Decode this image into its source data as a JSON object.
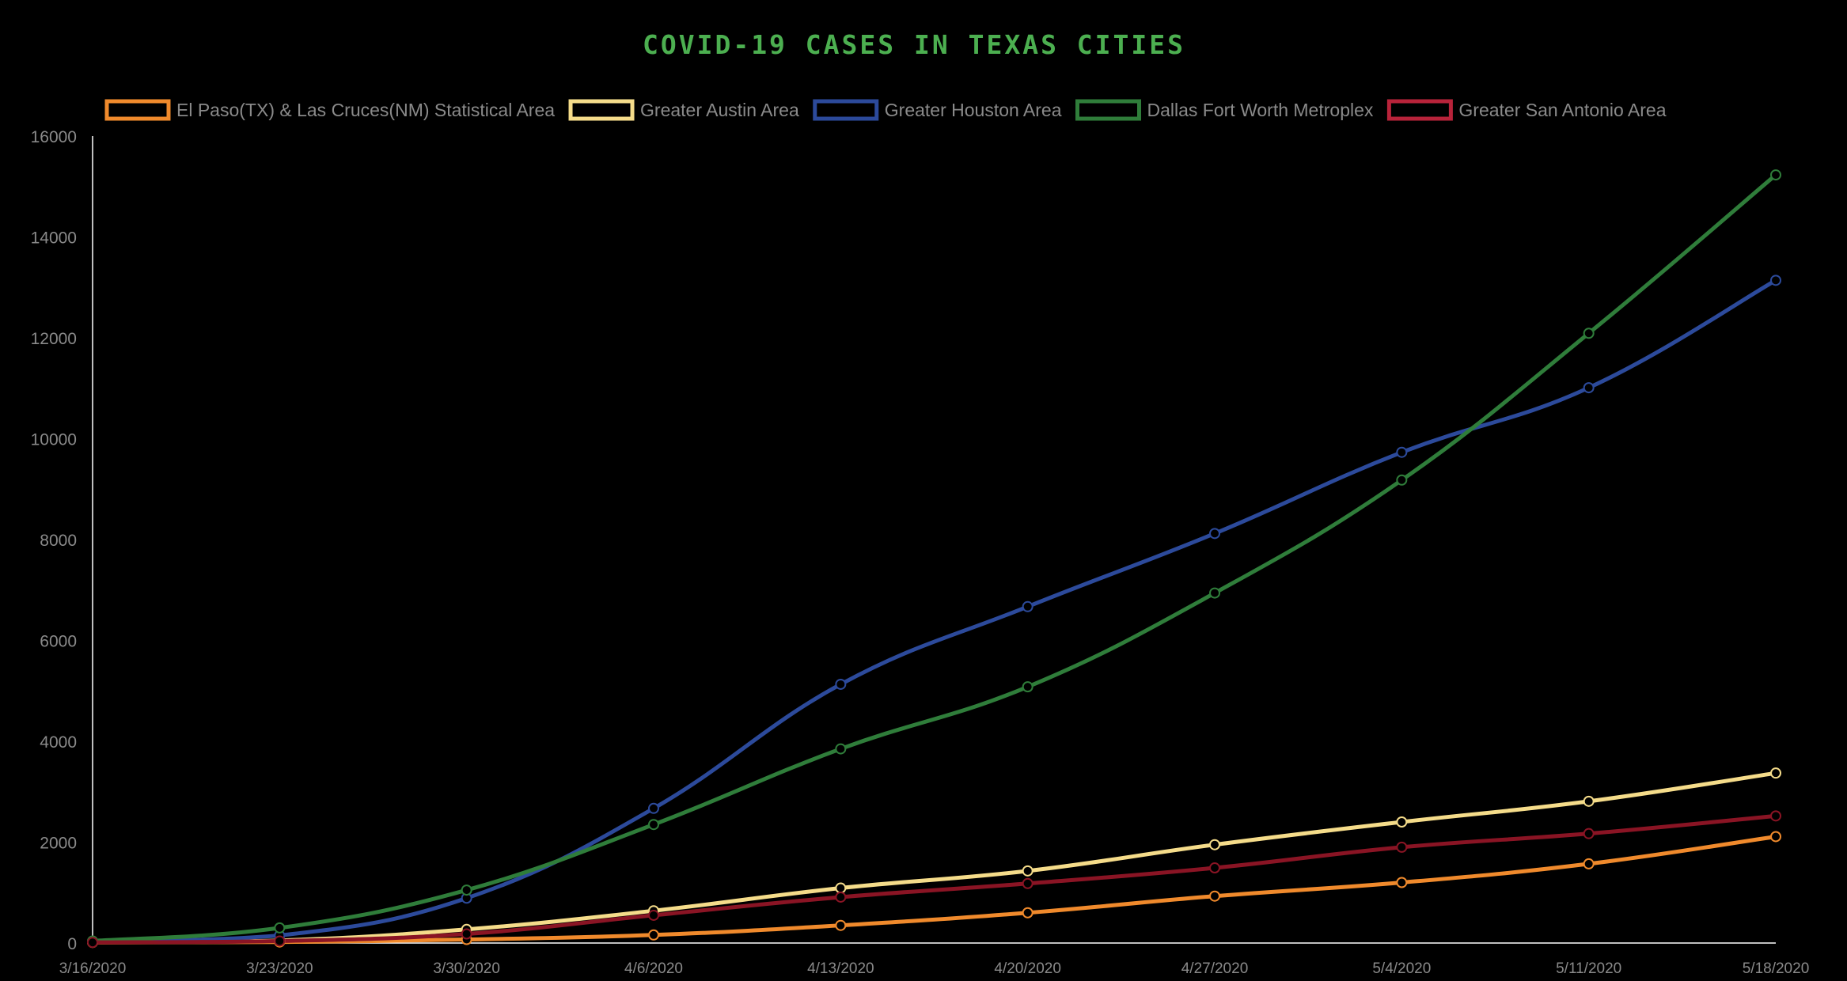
{
  "chart_data": {
    "type": "line",
    "title": "COVID-19 CASES IN TEXAS CITIES",
    "title_color": "#4caf50",
    "background": "#000000",
    "x": [
      "3/16/2020",
      "3/23/2020",
      "3/30/2020",
      "4/6/2020",
      "4/13/2020",
      "4/20/2020",
      "4/27/2020",
      "5/4/2020",
      "5/11/2020",
      "5/18/2020"
    ],
    "ylim": [
      0,
      16000
    ],
    "yticks": [
      "0",
      "2000",
      "4000",
      "6000",
      "8000",
      "10000",
      "12000",
      "14000",
      "16000"
    ],
    "grid": false,
    "legend_position": "top",
    "series": [
      {
        "name": "El Paso(TX) & Las Cruces(NM) Statistical Area",
        "color": "#f08a2c",
        "values": [
          10,
          20,
          70,
          160,
          350,
          600,
          930,
          1200,
          1570,
          2110
        ]
      },
      {
        "name": "Greater Austin Area",
        "color": "#f5dc8a",
        "values": [
          15,
          50,
          270,
          640,
          1090,
          1430,
          1950,
          2400,
          2810,
          3370
        ]
      },
      {
        "name": "Greater Houston Area",
        "color": "#2c4a9b",
        "values": [
          30,
          150,
          890,
          2670,
          5130,
          6670,
          8120,
          9730,
          11010,
          13140
        ]
      },
      {
        "name": "Dallas Fort Worth Metroplex",
        "color": "#2f7d3a",
        "values": [
          40,
          300,
          1050,
          2350,
          3850,
          5080,
          6940,
          9180,
          12090,
          15230
        ]
      },
      {
        "name": "Greater San Antonio Area",
        "color": "#8a1424",
        "legend_color": "#b8233a",
        "values": [
          12,
          40,
          180,
          550,
          910,
          1180,
          1490,
          1900,
          2170,
          2520
        ]
      }
    ]
  }
}
